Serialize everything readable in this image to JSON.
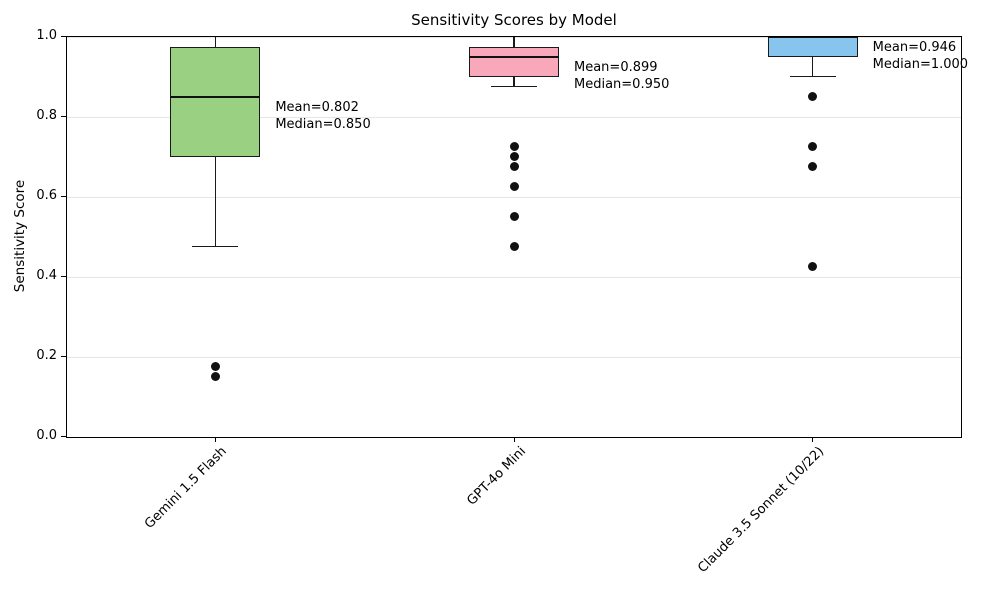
{
  "title": "Sensitivity Scores by Model",
  "ylabel": "Sensitivity Score",
  "chart_data": {
    "type": "box",
    "title": "Sensitivity Scores by Model",
    "xlabel": "",
    "ylabel": "Sensitivity Score",
    "ylim": [
      0.0,
      1.0
    ],
    "ytick_labels": [
      "0.0",
      "0.2",
      "0.4",
      "0.6",
      "0.8",
      "1.0"
    ],
    "ytick_values": [
      0.0,
      0.2,
      0.4,
      0.6,
      0.8,
      1.0
    ],
    "grid": "horizontal",
    "legend": "none",
    "categories": [
      "Gemini 1.5 Flash",
      "GPT-4o Mini",
      "Claude 3.5 Sonnet (10/22)"
    ],
    "series": [
      {
        "name": "Gemini 1.5 Flash",
        "fill_color": "#9ad082",
        "whisker_low": 0.475,
        "q1": 0.7,
        "median": 0.85,
        "q3": 0.975,
        "whisker_high": 1.0,
        "mean": 0.802,
        "outliers": [
          0.175,
          0.15
        ],
        "annotation_lines": [
          "Mean=0.802",
          "Median=0.850"
        ]
      },
      {
        "name": "GPT-4o Mini",
        "fill_color": "#f8a8ba",
        "whisker_low": 0.875,
        "q1": 0.9,
        "median": 0.95,
        "q3": 0.975,
        "whisker_high": 1.0,
        "mean": 0.899,
        "outliers": [
          0.725,
          0.7,
          0.675,
          0.625,
          0.55,
          0.475
        ],
        "annotation_lines": [
          "Mean=0.899",
          "Median=0.950"
        ]
      },
      {
        "name": "Claude 3.5 Sonnet (10/22)",
        "fill_color": "#87c4ee",
        "whisker_low": 0.9,
        "q1": 0.95,
        "median": 1.0,
        "q3": 1.0,
        "whisker_high": 1.0,
        "mean": 0.946,
        "outliers": [
          0.85,
          0.725,
          0.675,
          0.425
        ],
        "annotation_lines": [
          "Mean=0.946",
          "Median=1.000"
        ]
      }
    ]
  }
}
